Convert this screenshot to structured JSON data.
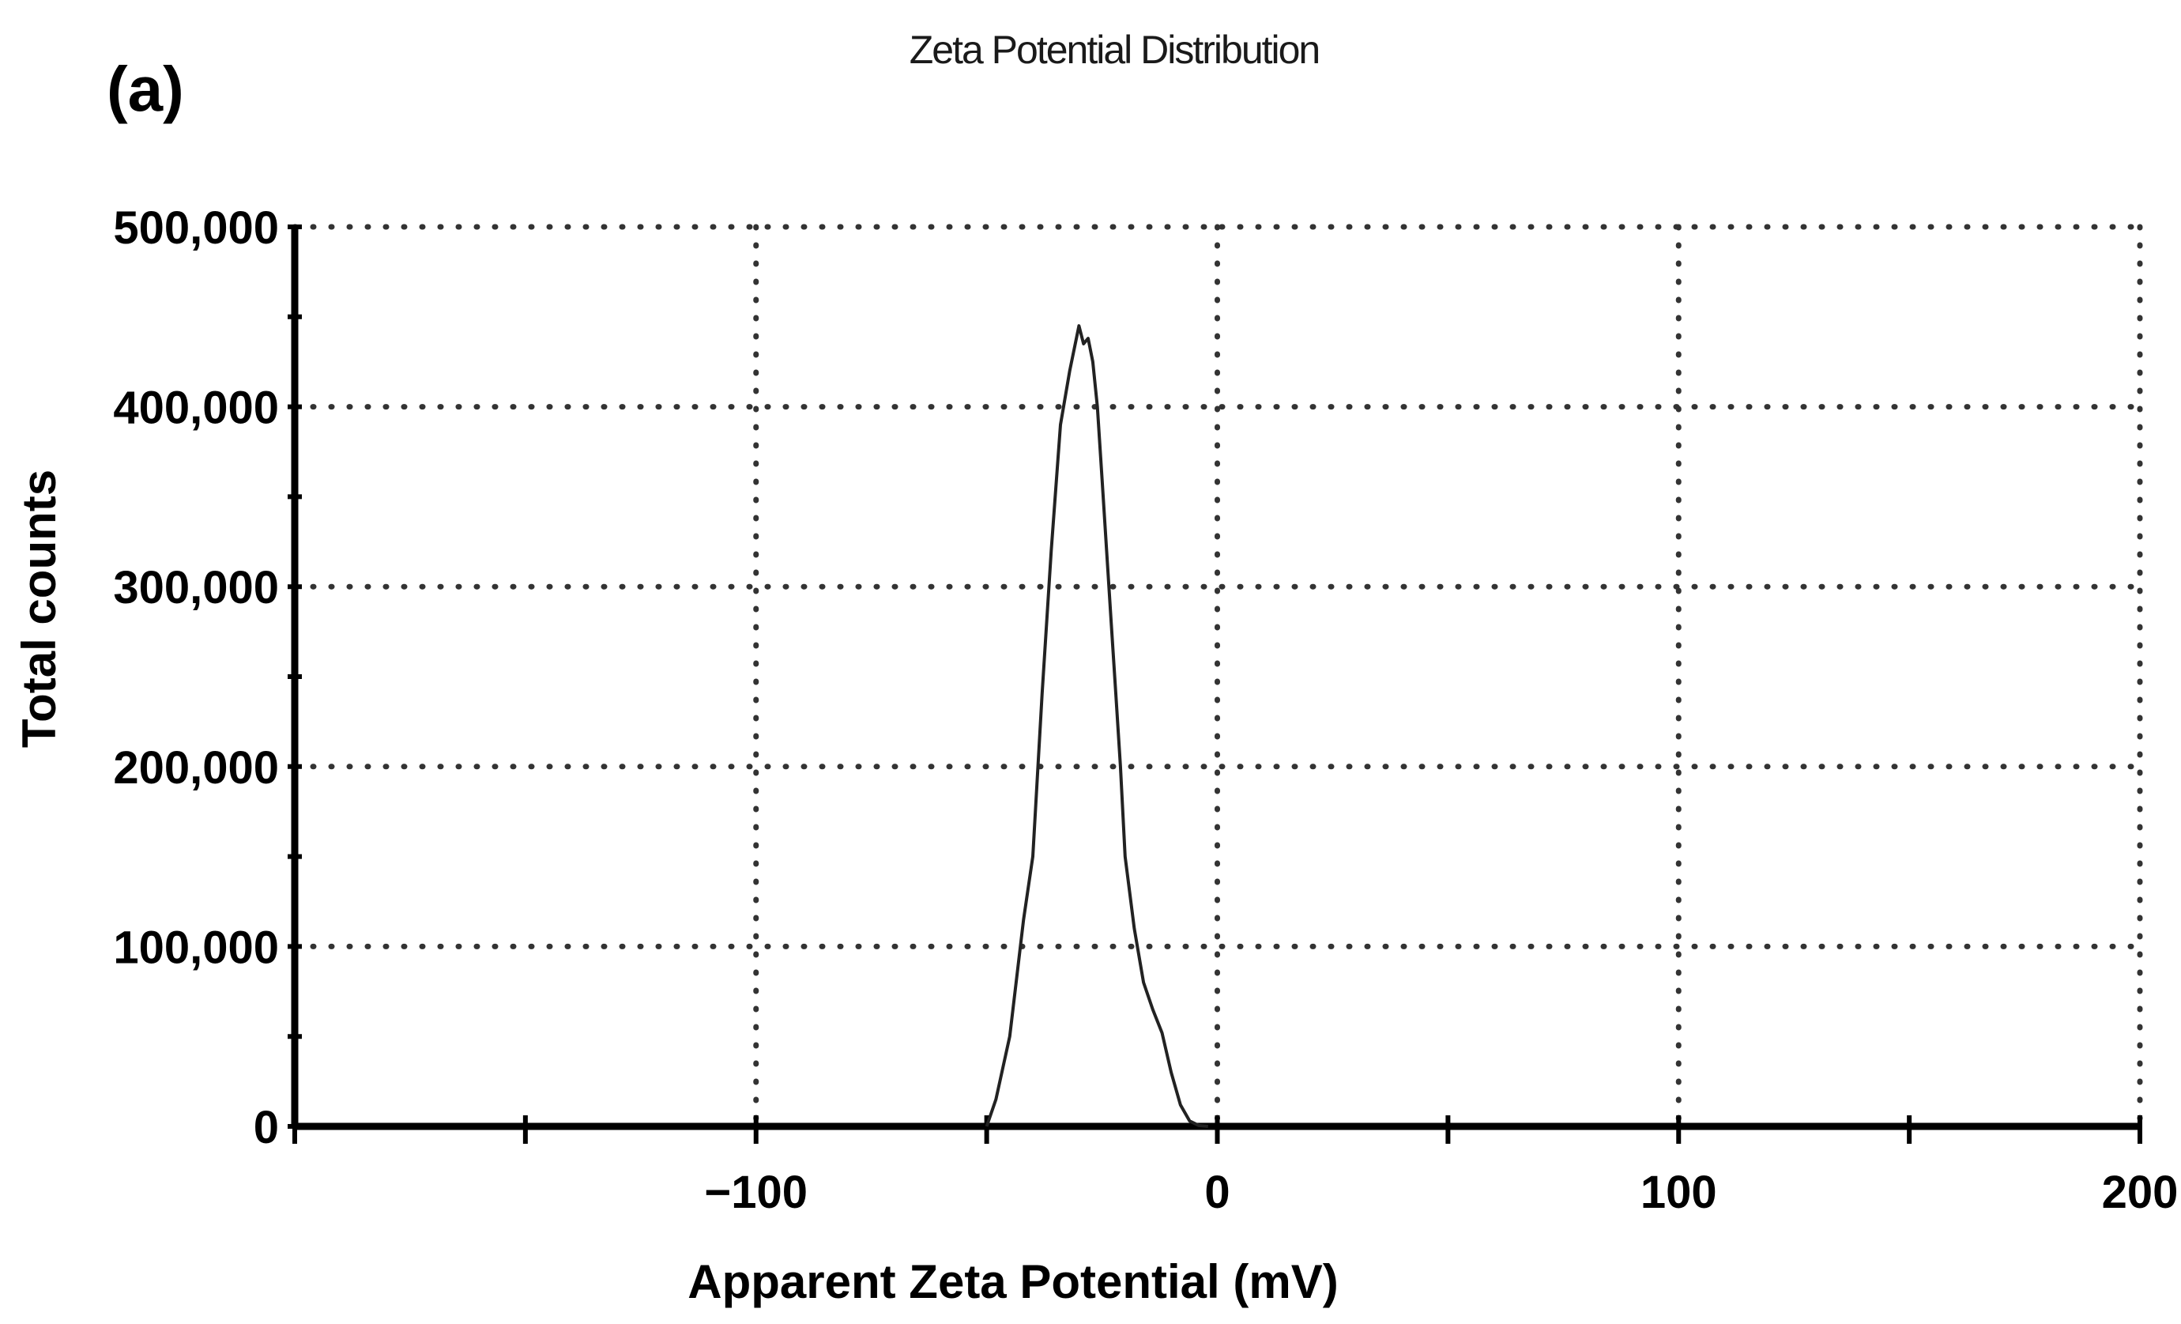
{
  "panel_label": "(a)",
  "chart_data": {
    "type": "line",
    "title": "Zeta Potential Distribution",
    "xlabel": "Apparent Zeta Potential (mV)",
    "ylabel": "Total counts",
    "xlim": [
      -200,
      200
    ],
    "ylim": [
      0,
      500000
    ],
    "x_ticks": [
      -100,
      0,
      100,
      200
    ],
    "x_tick_labels": [
      "−100",
      "0",
      "100",
      "200"
    ],
    "x_minor_ticks": [
      -200,
      -150,
      -100,
      -50,
      0,
      50,
      100,
      150,
      200
    ],
    "y_ticks": [
      0,
      100000,
      200000,
      300000,
      400000,
      500000
    ],
    "y_tick_labels": [
      "0",
      "100,000",
      "200,000",
      "300,000",
      "400,000",
      "500,000"
    ],
    "y_minor_ticks": [
      0,
      50000,
      100000,
      150000,
      200000,
      250000,
      300000,
      350000,
      400000,
      450000,
      500000
    ],
    "grid": true,
    "series": [
      {
        "x": [
          -50,
          -48,
          -45,
          -42,
          -40,
          -38,
          -36,
          -34,
          -32,
          -30,
          -29,
          -28,
          -27,
          -26,
          -25,
          -24,
          -23,
          -22,
          -21,
          -20,
          -18,
          -16,
          -14,
          -12,
          -10,
          -8,
          -6,
          -4,
          -2
        ],
        "y": [
          0,
          15000,
          50000,
          115000,
          150000,
          240000,
          320000,
          390000,
          420000,
          445000,
          435000,
          438000,
          425000,
          400000,
          360000,
          320000,
          280000,
          240000,
          200000,
          150000,
          110000,
          80000,
          65000,
          52000,
          30000,
          12000,
          3000,
          500,
          0
        ]
      }
    ]
  }
}
